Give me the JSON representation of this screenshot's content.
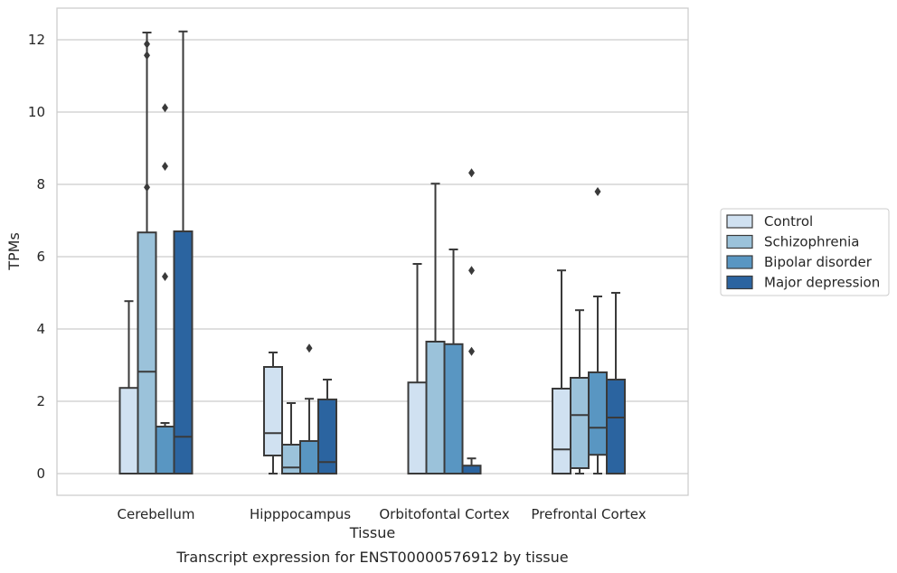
{
  "chart_data": {
    "type": "box",
    "xlabel": "Tissue",
    "ylabel": "TPMs",
    "caption": "Transcript expression for ENST00000576912 by tissue",
    "ylim": [
      -0.6,
      12.8
    ],
    "yticks": [
      0,
      2,
      4,
      6,
      8,
      10,
      12
    ],
    "grid": "horizontal",
    "legend_position": "right",
    "categories": [
      "Cerebellum",
      "Hipppocampus",
      "Orbitofontal Cortex",
      "Prefrontal Cortex"
    ],
    "series": [
      {
        "name": "Control",
        "color": "#d0e1f1",
        "boxes": [
          {
            "whislo": 0,
            "q1": 0,
            "med": 0,
            "q3": 2.37,
            "whishi": 4.77,
            "fliers": []
          },
          {
            "whislo": 0,
            "q1": 0.5,
            "med": 1.12,
            "q3": 2.95,
            "whishi": 3.35,
            "fliers": []
          },
          {
            "whislo": 0,
            "q1": 0,
            "med": 0,
            "q3": 2.52,
            "whishi": 5.8,
            "fliers": []
          },
          {
            "whislo": 0,
            "q1": 0,
            "med": 0.67,
            "q3": 2.35,
            "whishi": 5.62,
            "fliers": []
          }
        ]
      },
      {
        "name": "Schizophrenia",
        "color": "#9bc2da",
        "boxes": [
          {
            "whislo": 0,
            "q1": 0,
            "med": 2.82,
            "q3": 6.67,
            "whishi": 12.2,
            "fliers": [
              7.92,
              11.57,
              11.88
            ]
          },
          {
            "whislo": 0,
            "q1": 0,
            "med": 0.17,
            "q3": 0.8,
            "whishi": 1.95,
            "fliers": []
          },
          {
            "whislo": 0,
            "q1": 0,
            "med": 0,
            "q3": 3.65,
            "whishi": 8.02,
            "fliers": []
          },
          {
            "whislo": 0,
            "q1": 0.15,
            "med": 1.62,
            "q3": 2.65,
            "whishi": 4.52,
            "fliers": []
          }
        ]
      },
      {
        "name": "Bipolar disorder",
        "color": "#5996c2",
        "boxes": [
          {
            "whislo": 0,
            "q1": 0,
            "med": 0,
            "q3": 1.3,
            "whishi": 1.4,
            "fliers": [
              5.45,
              8.5,
              10.12
            ]
          },
          {
            "whislo": 0,
            "q1": 0,
            "med": 0,
            "q3": 0.9,
            "whishi": 2.07,
            "fliers": [
              3.47
            ]
          },
          {
            "whislo": 0,
            "q1": 0,
            "med": 0,
            "q3": 3.58,
            "whishi": 6.2,
            "fliers": []
          },
          {
            "whislo": 0,
            "q1": 0.52,
            "med": 1.27,
            "q3": 2.8,
            "whishi": 4.9,
            "fliers": [
              7.8
            ]
          }
        ]
      },
      {
        "name": "Major depression",
        "color": "#2b64a0",
        "boxes": [
          {
            "whislo": 0,
            "q1": 0,
            "med": 1.02,
            "q3": 6.7,
            "whishi": 12.23,
            "fliers": []
          },
          {
            "whislo": 0,
            "q1": 0,
            "med": 0.32,
            "q3": 2.05,
            "whishi": 2.6,
            "fliers": []
          },
          {
            "whislo": 0,
            "q1": 0,
            "med": 0,
            "q3": 0.22,
            "whishi": 0.42,
            "fliers": [
              3.38,
              5.62,
              8.32
            ]
          },
          {
            "whislo": 0,
            "q1": 0,
            "med": 1.55,
            "q3": 2.6,
            "whishi": 5.0,
            "fliers": []
          }
        ]
      }
    ]
  }
}
